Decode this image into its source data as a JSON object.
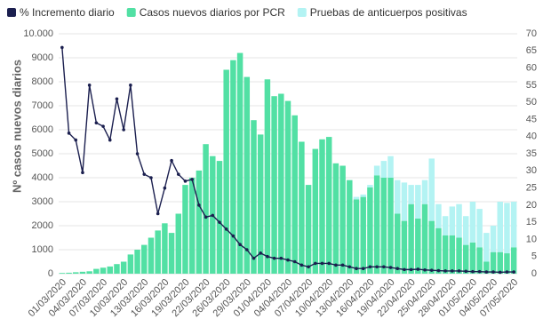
{
  "chart_data": {
    "type": "bar",
    "y_label": "Nº casos nuevos diarios",
    "categories": [
      "01/03/2020",
      null,
      null,
      "04/03/2020",
      null,
      null,
      "07/03/2020",
      null,
      null,
      "10/03/2020",
      null,
      null,
      "13/03/2020",
      null,
      null,
      "16/03/2020",
      null,
      null,
      "19/03/2020",
      null,
      null,
      "22/03/2020",
      null,
      null,
      "26/03/2020",
      null,
      null,
      "29/03/2020",
      null,
      null,
      "01/04/2020",
      null,
      null,
      "04/04/2020",
      null,
      null,
      "07/04/2020",
      null,
      null,
      "10/04/2020",
      null,
      null,
      "13/04/2020",
      null,
      null,
      "16/04/2020",
      null,
      null,
      "19/04/2020",
      null,
      null,
      "22/04/2020",
      null,
      null,
      "25/04/2020",
      null,
      null,
      "28/04/2020",
      null,
      null,
      "01/05/2020",
      null,
      null,
      "04/05/2020",
      null,
      null,
      "07/05/2020"
    ],
    "series": [
      {
        "name": "% Incremento diario",
        "type": "line",
        "axis": "y2",
        "color": "#1b1f4f",
        "values": [
          66,
          41,
          39,
          29.5,
          55,
          44,
          43,
          39,
          51,
          42,
          55,
          35,
          29,
          28,
          17.5,
          25,
          33,
          29,
          27,
          27.5,
          20,
          16.5,
          17,
          15,
          13,
          11,
          8.5,
          7,
          4.5,
          6,
          5,
          4.5,
          4.5,
          4,
          3.5,
          2.5,
          2,
          3,
          3,
          3,
          2.5,
          2.5,
          2,
          1.5,
          1.5,
          2,
          2,
          2,
          1.8,
          1.5,
          1.2,
          1.2,
          1.3,
          1.1,
          1,
          0.9,
          0.8,
          0.8,
          0.8,
          0.7,
          0.6,
          0.6,
          0.5,
          0.5,
          0.4,
          0.5,
          0.5
        ]
      },
      {
        "name": "Casos nuevos diarios por PCR",
        "type": "bar",
        "color": "#52e0a4",
        "values": [
          30,
          40,
          60,
          80,
          100,
          200,
          250,
          300,
          400,
          500,
          800,
          1000,
          1200,
          1500,
          1800,
          2100,
          1700,
          2500,
          3700,
          4000,
          4300,
          5400,
          4900,
          4700,
          8500,
          8900,
          9200,
          8200,
          6400,
          5800,
          8100,
          7400,
          7500,
          7200,
          6600,
          5500,
          3700,
          5200,
          5600,
          5700,
          4600,
          4500,
          3900,
          3100,
          3200,
          3600,
          4100,
          4000,
          4000,
          2500,
          2200,
          2900,
          2300,
          2900,
          2200,
          1900,
          1600,
          1600,
          1500,
          1200,
          1300,
          1100,
          500,
          900,
          900,
          850,
          1100
        ]
      },
      {
        "name": "Pruebas de anticuerpos positivas",
        "type": "bar",
        "color": "#b3f3f3",
        "values": [
          0,
          0,
          0,
          0,
          0,
          0,
          0,
          0,
          0,
          0,
          0,
          0,
          0,
          0,
          0,
          0,
          0,
          0,
          0,
          0,
          0,
          0,
          0,
          0,
          0,
          0,
          0,
          0,
          0,
          0,
          0,
          0,
          0,
          0,
          0,
          0,
          0,
          0,
          0,
          0,
          0,
          0,
          0,
          100,
          100,
          100,
          400,
          700,
          900,
          1400,
          1600,
          800,
          1400,
          1000,
          2600,
          1000,
          800,
          1200,
          1400,
          1200,
          1700,
          1600,
          1200,
          1100,
          2100,
          2100,
          1900
        ]
      }
    ],
    "ylim": [
      0,
      10000
    ],
    "yticks": [
      0,
      1000,
      2000,
      3000,
      4000,
      5000,
      6000,
      7000,
      8000,
      9000,
      {
        "value": 10000,
        "label": "10.000"
      }
    ],
    "y2lim": [
      0,
      70
    ],
    "y2ticks": [
      0,
      5,
      10,
      15,
      20,
      25,
      30,
      35,
      40,
      45,
      50,
      55,
      60,
      65,
      70
    ],
    "grid": true
  }
}
